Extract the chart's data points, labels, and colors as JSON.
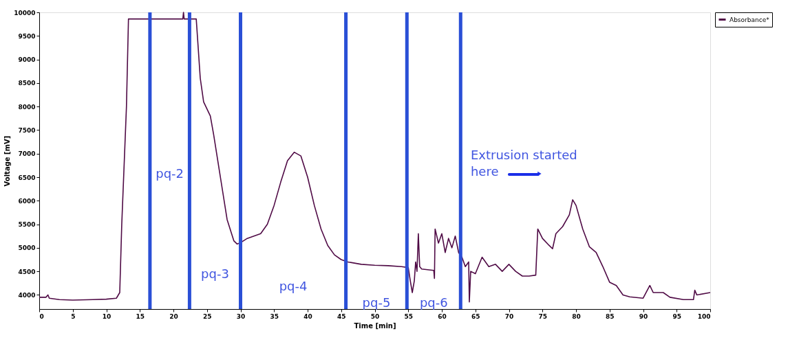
{
  "chart_data": {
    "type": "line",
    "xlabel": "Time [min]",
    "ylabel": "Voltage [mV]",
    "xlim": [
      0,
      100
    ],
    "xticks": [
      0,
      5,
      10,
      15,
      20,
      25,
      30,
      35,
      40,
      45,
      50,
      55,
      60,
      65,
      70,
      75,
      80,
      85,
      90,
      95,
      100
    ],
    "ylim": [
      3700,
      10000
    ],
    "yticks": [
      4000,
      4500,
      5000,
      5500,
      6000,
      6500,
      7000,
      7500,
      8000,
      8500,
      9000,
      9500,
      10000
    ],
    "grid": false,
    "legend": "top right",
    "marker": "none",
    "line_style": "solid",
    "series": [
      {
        "name": "Absorbance*",
        "color": "#4f0a45",
        "x": [
          0,
          1,
          1.3,
          1.5,
          3,
          5,
          8,
          10,
          11.5,
          12,
          12.3,
          13,
          13.3,
          21.4,
          21.5,
          21.6,
          23.4,
          24,
          24.5,
          25.5,
          26,
          27,
          28,
          29,
          29.5,
          30,
          31,
          32,
          33,
          34,
          35,
          36,
          37,
          38,
          39,
          40,
          41,
          42,
          43,
          44,
          45,
          46,
          48,
          50,
          52,
          54,
          55,
          55.3,
          55.6,
          55.9,
          56.1,
          56.3,
          56.5,
          56.7,
          57,
          58.8,
          58.9,
          59,
          59.5,
          60,
          60.5,
          61,
          61.5,
          62,
          62.5,
          63,
          63.5,
          64,
          64.1,
          64.3,
          65,
          66,
          67,
          68,
          69,
          70,
          71,
          72,
          73,
          74,
          74.3,
          75,
          76,
          76.5,
          77,
          78,
          79,
          79.5,
          80,
          81,
          82,
          83,
          84,
          85,
          86,
          87,
          88,
          90,
          91,
          91.5,
          93,
          94,
          96,
          97.5,
          97.7,
          98,
          100
        ],
        "values": [
          3950,
          3950,
          4000,
          3930,
          3900,
          3890,
          3900,
          3910,
          3930,
          4050,
          5500,
          8000,
          9860,
          9860,
          10000,
          9860,
          9860,
          8600,
          8100,
          7800,
          7400,
          6500,
          5600,
          5150,
          5080,
          5110,
          5200,
          5250,
          5300,
          5500,
          5900,
          6400,
          6850,
          7030,
          6950,
          6500,
          5900,
          5400,
          5050,
          4850,
          4750,
          4700,
          4650,
          4630,
          4620,
          4600,
          4580,
          4300,
          4050,
          4300,
          4700,
          4500,
          5300,
          4600,
          4550,
          4520,
          4350,
          5400,
          5100,
          5300,
          4900,
          5200,
          5000,
          5250,
          4900,
          4800,
          4600,
          4700,
          3850,
          4500,
          4450,
          4800,
          4600,
          4650,
          4500,
          4650,
          4500,
          4400,
          4400,
          4420,
          5400,
          5200,
          5050,
          4980,
          5300,
          5450,
          5700,
          6020,
          5900,
          5400,
          5020,
          4900,
          4600,
          4270,
          4200,
          4000,
          3960,
          3930,
          4200,
          4050,
          4050,
          3950,
          3900,
          3900,
          4100,
          4000,
          4050
        ]
      }
    ],
    "ref_lines": [
      {
        "axis": "x",
        "value": 16.5,
        "color": "#2a4fd6"
      },
      {
        "axis": "x",
        "value": 22.4,
        "color": "#2a4fd6"
      },
      {
        "axis": "x",
        "value": 30,
        "color": "#2a4fd6"
      },
      {
        "axis": "x",
        "value": 45.7,
        "color": "#2a4fd6"
      },
      {
        "axis": "x",
        "value": 54.8,
        "color": "#2a4fd6"
      },
      {
        "axis": "x",
        "value": 62.8,
        "color": "#2a4fd6"
      }
    ],
    "annotations": [
      "pq-2",
      "pq-3",
      "pq-4",
      "pq-5",
      "pq-6",
      "Extrusion started here"
    ]
  }
}
